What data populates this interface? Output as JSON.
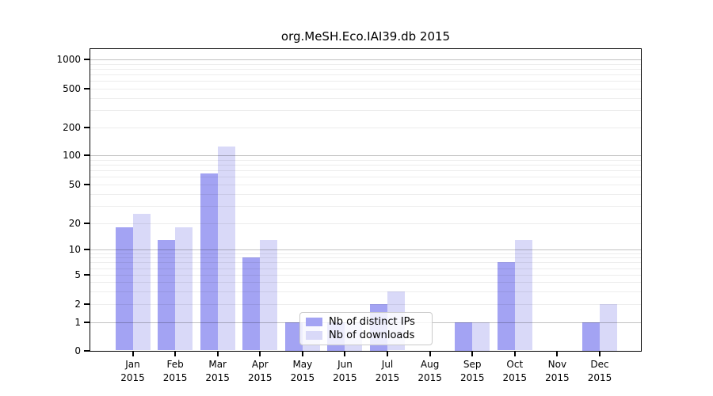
{
  "title": "org.MeSH.Eco.IAI39.db 2015",
  "legend": {
    "items": [
      {
        "label": "Nb of distinct IPs",
        "color": "#a3a3f3"
      },
      {
        "label": "Nb of downloads",
        "color": "#d9d9f8"
      }
    ]
  },
  "colors": {
    "bar_distinct_ips": "#a3a3f3",
    "bar_downloads": "#d9d9f8",
    "axis": "#000000"
  },
  "chart_data": {
    "type": "bar",
    "title": "org.MeSH.Eco.IAI39.db 2015",
    "categories": [
      "Jan",
      "Feb",
      "Mar",
      "Apr",
      "May",
      "Jun",
      "Jul",
      "Aug",
      "Sep",
      "Oct",
      "Nov",
      "Dec"
    ],
    "category_year": "2015",
    "series": [
      {
        "name": "Nb of distinct IPs",
        "color": "#a3a3f3",
        "values": [
          18,
          13,
          65,
          8,
          1,
          1,
          2,
          0,
          1,
          7,
          0,
          1
        ]
      },
      {
        "name": "Nb of downloads",
        "color": "#d9d9f8",
        "values": [
          25,
          18,
          124,
          13,
          1,
          1,
          3,
          0,
          1,
          13,
          0,
          2
        ]
      }
    ],
    "yscale": "symlog",
    "yticks": [
      0,
      1,
      2,
      5,
      10,
      20,
      50,
      100,
      200,
      500,
      1000
    ],
    "ylim": [
      0,
      1400
    ],
    "xlabel": "",
    "ylabel": "",
    "grid": true,
    "legend_position": "lower center"
  }
}
